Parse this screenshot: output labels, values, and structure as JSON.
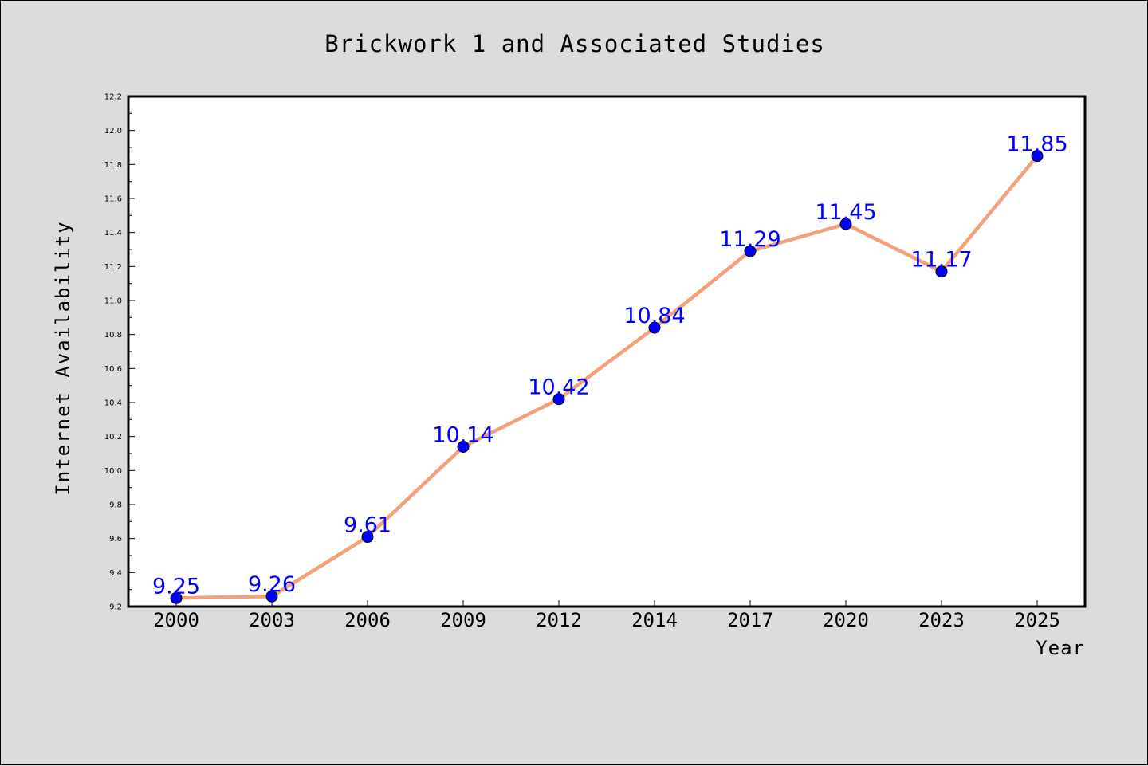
{
  "chart_data": {
    "type": "line",
    "title": "Brickwork 1 and Associated Studies",
    "xlabel": "Year",
    "ylabel": "Internet Availability",
    "categories": [
      "2000",
      "2003",
      "2006",
      "2009",
      "2012",
      "2014",
      "2017",
      "2020",
      "2023",
      "2025"
    ],
    "series": [
      {
        "values": [
          9.25,
          9.26,
          9.61,
          10.14,
          10.42,
          10.84,
          11.29,
          11.45,
          11.17,
          11.85
        ],
        "data_labels": [
          "9.25",
          "9.26",
          "9.61",
          "10.14",
          "10.42",
          "10.84",
          "11.29",
          "11.45",
          "11.17",
          "11.85"
        ],
        "line_color": "#f4a07a",
        "marker_color": "#0000ff",
        "label_color": "#0000ff"
      }
    ],
    "ylim": [
      9.2,
      12.2
    ],
    "y_ticks": [
      "9.2",
      "9.4",
      "9.6",
      "9.8",
      "10.0",
      "10.2",
      "10.4",
      "10.6",
      "10.8",
      "11.0",
      "11.2",
      "11.4",
      "11.6",
      "11.8",
      "12.0",
      "12.2"
    ],
    "grid": false,
    "legend": "none",
    "background_color": "#dcdcdc",
    "plot_background_color": "#ffffff"
  }
}
